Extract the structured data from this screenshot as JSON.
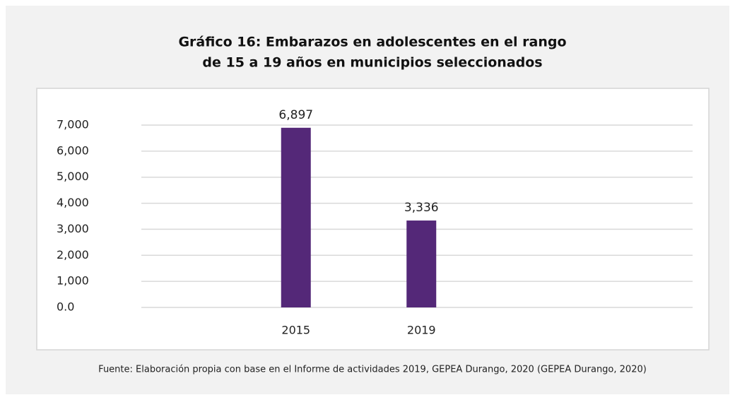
{
  "chart_data": {
    "type": "bar",
    "title": [
      "Gráfico 16: Embarazos en adolescentes en el rango",
      "de 15 a 19 años en municipios seleccionados"
    ],
    "categories": [
      "2015",
      "2019"
    ],
    "values": [
      6897,
      3336
    ],
    "value_labels": [
      "6,897",
      "3,336"
    ],
    "color": "#542878",
    "ylim": [
      0,
      7000
    ],
    "yticks": [
      {
        "value": 0,
        "label": "0.0"
      },
      {
        "value": 1000,
        "label": "1,000"
      },
      {
        "value": 2000,
        "label": "2,000"
      },
      {
        "value": 3000,
        "label": "3,000"
      },
      {
        "value": 4000,
        "label": "4,000"
      },
      {
        "value": 5000,
        "label": "5,000"
      },
      {
        "value": 6000,
        "label": "6,000"
      },
      {
        "value": 7000,
        "label": "7,000"
      }
    ],
    "grid": true,
    "source": "Fuente: Elaboración propia con base en el Informe de actividades 2019, GEPEA Durango, 2020 (GEPEA Durango, 2020)"
  }
}
